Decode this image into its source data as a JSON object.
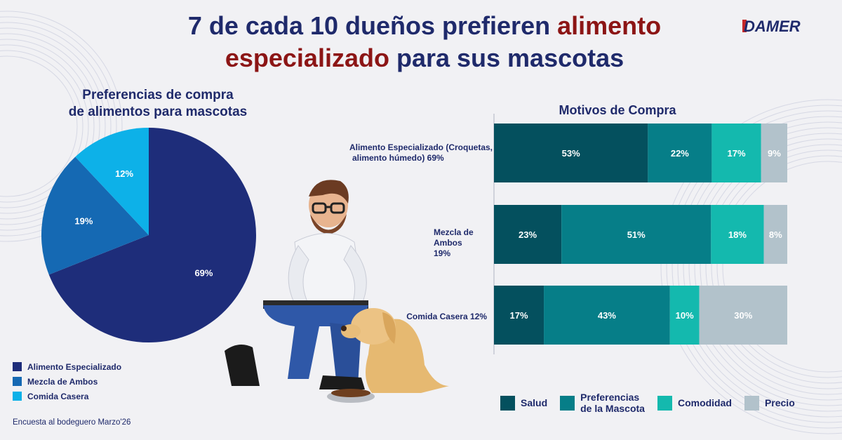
{
  "headline": {
    "part1": "7 de cada 10 dueños prefieren ",
    "part2": "alimento especializado",
    "part3": " para sus mascotas"
  },
  "logo": {
    "text": "DAMER"
  },
  "footnote": "Encuesta al bodeguero Marzo'26",
  "colors": {
    "navy": "#1f2a6b",
    "red": "#8c1515",
    "pie": [
      "#1e2d7a",
      "#1569b3",
      "#0db1e8"
    ],
    "bars": [
      "#04505e",
      "#067e88",
      "#14b9ae",
      "#b2c2cb"
    ]
  },
  "chart_data": [
    {
      "type": "pie",
      "title": "Preferencias de compra de alimentos para mascotas",
      "title_line1": "Preferencias de compra",
      "title_line2": "de alimentos para mascotas",
      "categories": [
        "Alimento Especializado",
        "Mezcla de Ambos",
        "Comida Casera"
      ],
      "values": [
        69,
        19,
        12
      ],
      "value_labels": [
        "69%",
        "19%",
        "12%"
      ],
      "legend_position": "bottom-left"
    },
    {
      "type": "bar",
      "orientation": "horizontal",
      "stacked": true,
      "title": "Motivos de Compra",
      "categories": [
        "Alimento Especializado (Croquetas, alimento húmedo) 69%",
        "Mezcla de Ambos 19%",
        "Comida Casera 12%"
      ],
      "category_lines": [
        [
          "Alimento Especializado (Croquetas,",
          "alimento húmedo) 69%"
        ],
        [
          "Mezcla de",
          "Ambos 19%"
        ],
        [
          "Comida Casera 12%"
        ]
      ],
      "series": [
        {
          "name": "Salud",
          "values": [
            53,
            23,
            17
          ]
        },
        {
          "name": "Preferencias de la Mascota",
          "values": [
            22,
            51,
            43
          ]
        },
        {
          "name": "Comodidad",
          "values": [
            17,
            18,
            10
          ]
        },
        {
          "name": "Precio",
          "values": [
            9,
            8,
            30
          ]
        }
      ],
      "legend_labels": [
        "Salud",
        "Preferencias\nde la Mascota",
        "Comodidad",
        "Precio"
      ],
      "legend_position": "bottom",
      "grid": false
    }
  ],
  "illustration": {
    "description_icon": "man-kneeling-feeding-dog-illustration"
  }
}
